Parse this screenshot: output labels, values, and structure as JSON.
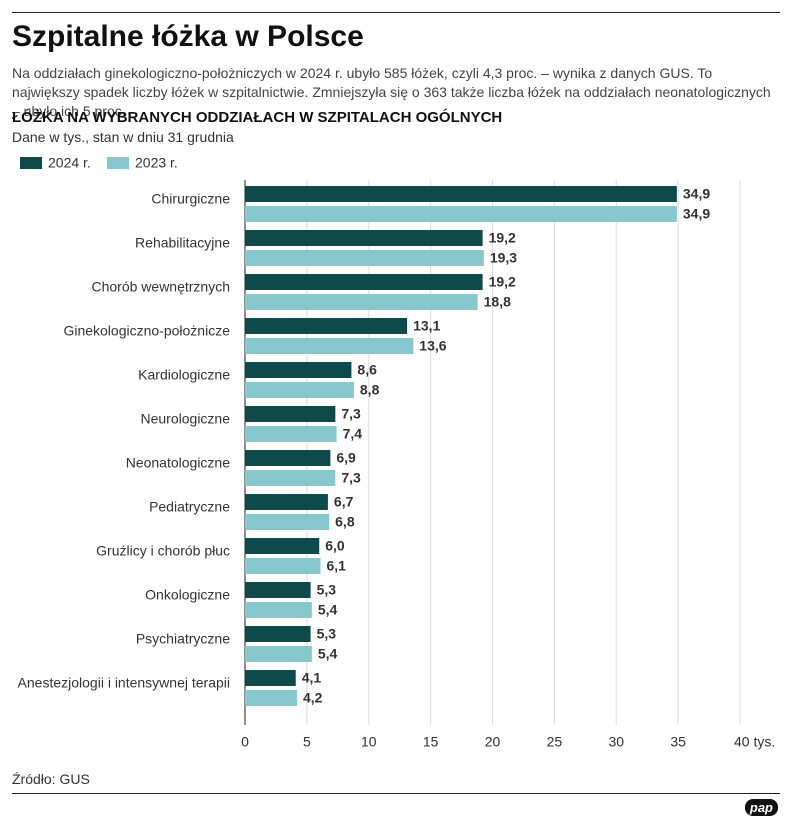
{
  "chart_data": {
    "type": "bar",
    "orientation": "horizontal",
    "title": "Szpitalne łóżka w Polsce",
    "subtitle": "Na oddziałach ginekologiczno-położniczych w 2024 r. ubyło 585 łóżek, czyli 4,3 proc. – wynika z danych GUS. To największy spadek liczby łóżek w szpitalnictwie. Zmniejszyła się o 363 także liczba łóżek na oddziałach neonatologicznych – ubyło ich 5 proc.",
    "chart_title": "ŁÓŻKA NA WYBRANYCH ODDZIAŁACH W SZPITALACH OGÓLNYCH",
    "note": "Dane w tys., stan w dniu 31 grudnia",
    "source": "Źródło: GUS",
    "logo": "pap",
    "categories": [
      "Chirurgiczne",
      "Rehabilitacyjne",
      "Chorób wewnętrznych",
      "Ginekologiczno-położnicze",
      "Kardiologiczne",
      "Neurologiczne",
      "Neonatologiczne",
      "Pediatryczne",
      "Gruźlicy i chorób płuc",
      "Onkologiczne",
      "Psychiatryczne",
      "Anestezjologii i intensywnej terapii"
    ],
    "series": [
      {
        "name": "2024 r.",
        "color": "#0d4a49",
        "values": [
          34.9,
          19.2,
          19.2,
          13.1,
          8.6,
          7.3,
          6.9,
          6.7,
          6.0,
          5.3,
          5.3,
          4.1
        ],
        "value_labels": [
          "34,9",
          "19,2",
          "19,2",
          "13,1",
          "8,6",
          "7,3",
          "6,9",
          "6,7",
          "6,0",
          "5,3",
          "5,3",
          "4,1"
        ]
      },
      {
        "name": "2023 r.",
        "color": "#86c8cb",
        "values": [
          34.9,
          19.3,
          18.8,
          13.6,
          8.8,
          7.4,
          7.3,
          6.8,
          6.1,
          5.4,
          5.4,
          4.2
        ],
        "value_labels": [
          "34,9",
          "19,3",
          "18,8",
          "13,6",
          "8,8",
          "7,4",
          "7,3",
          "6,8",
          "6,1",
          "5,4",
          "5,4",
          "4,2"
        ]
      }
    ],
    "xlim": [
      0,
      40
    ],
    "xticks": [
      0,
      5,
      10,
      15,
      20,
      25,
      30,
      35,
      {
        "value": 40,
        "label": "40 tys."
      }
    ],
    "grid": true
  }
}
